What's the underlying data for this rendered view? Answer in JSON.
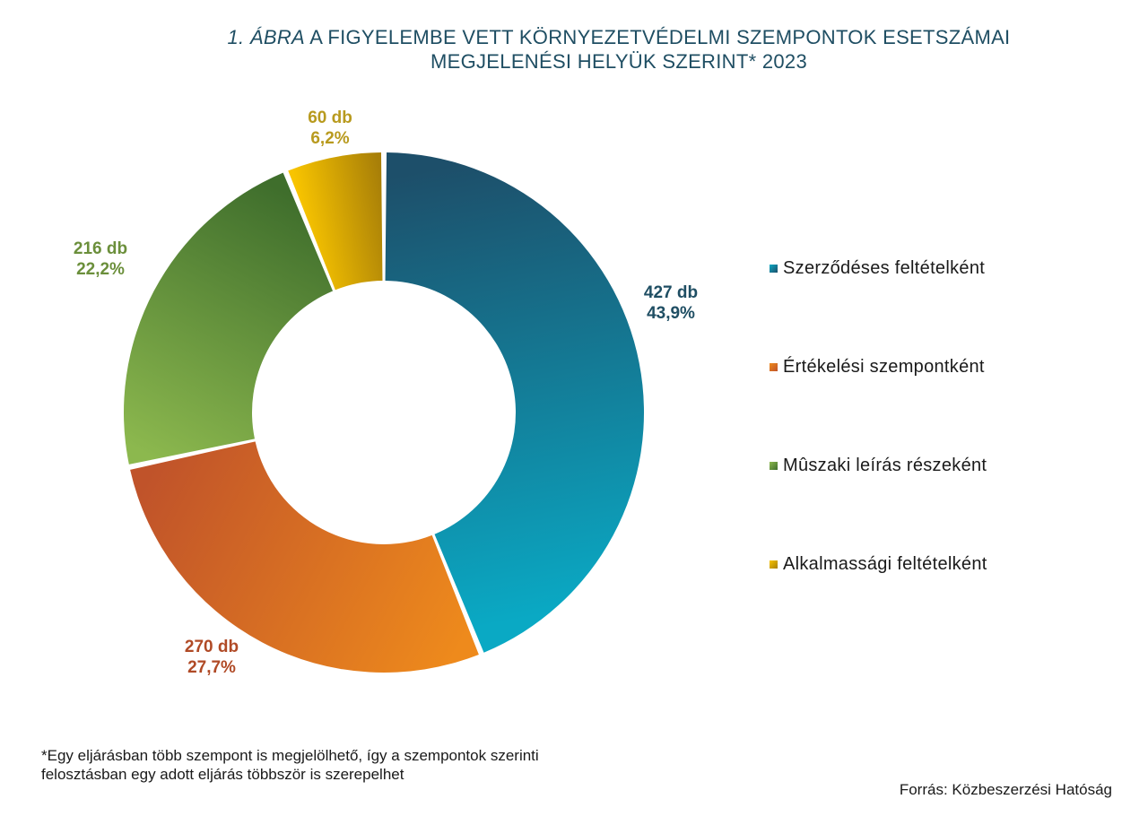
{
  "title": {
    "lead": "1. ÁBRA",
    "line1": " A FIGYELEMBE VETT KÖRNYEZETVÉDELMI SZEMPONTOK  ESETSZÁMAI",
    "line2": "MEGJELENÉSI HELYÜK SZERINT* 2023"
  },
  "chart_data": {
    "type": "pie",
    "donut": true,
    "title": "1. ÁBRA A FIGYELEMBE VETT KÖRNYEZETVÉDELMI SZEMPONTOK  ESETSZÁMAI MEGJELENÉSI HELYÜK SZERINT* 2023",
    "legend_position": "right",
    "slices": [
      {
        "name": "Szerződéses feltételként",
        "value": 427,
        "count_label": "427 db",
        "percent_label": "43,9%",
        "color": "#147f9a",
        "color_light": "#0aa9c4",
        "color_dark": "#1d4f6a",
        "label_color": "#1f4e63"
      },
      {
        "name": "Értékelési szempontként",
        "value": 270,
        "count_label": "270 db",
        "percent_label": "27,7%",
        "color": "#d9701f",
        "color_light": "#ee8a1c",
        "color_dark": "#c0532a",
        "label_color": "#b04a26"
      },
      {
        "name": "Mûszaki leírás részeként",
        "value": 216,
        "count_label": "216 db",
        "percent_label": "22,2%",
        "color": "#6a9a3c",
        "color_light": "#8cb84e",
        "color_dark": "#3f6e2c",
        "label_color": "#6b8f3b"
      },
      {
        "name": "Alkalmassági feltételként",
        "value": 60,
        "count_label": "60 db",
        "percent_label": "6,2%",
        "color": "#e0b10a",
        "color_light": "#f8c400",
        "color_dark": "#a87f08",
        "label_color": "#b89a1e"
      }
    ]
  },
  "footnote": {
    "line1": "*Egy eljárásban több szempont is megjelölhető, így a szempontok szerinti",
    "line2": "felosztásban egy adott eljárás többször is szerepelhet"
  },
  "source": "Forrás: Közbeszerzési Hatóság"
}
